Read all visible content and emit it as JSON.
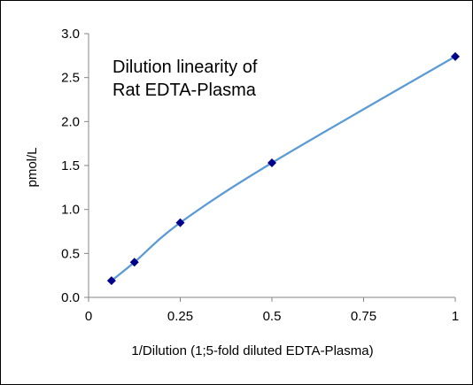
{
  "chart_data": {
    "type": "scatter",
    "title_lines": [
      "Dilution linearity of",
      "Rat  EDTA-Plasma"
    ],
    "xlabel": "1/Dilution (1;5-fold diluted EDTA-Plasma)",
    "ylabel": "pmol/L",
    "xlim": [
      0,
      1
    ],
    "ylim": [
      0,
      3.0
    ],
    "x_ticks": [
      {
        "value": 0,
        "label": "0"
      },
      {
        "value": 0.25,
        "label": "0.25"
      },
      {
        "value": 0.5,
        "label": "0.5"
      },
      {
        "value": 0.75,
        "label": "0.75"
      },
      {
        "value": 1,
        "label": "1"
      }
    ],
    "y_ticks": [
      {
        "value": 0,
        "label": "0.0"
      },
      {
        "value": 0.5,
        "label": "0.5"
      },
      {
        "value": 1.0,
        "label": "1.0"
      },
      {
        "value": 1.5,
        "label": "1.5"
      },
      {
        "value": 2.0,
        "label": "2.0"
      },
      {
        "value": 2.5,
        "label": "2.5"
      },
      {
        "value": 3.0,
        "label": "3.0"
      }
    ],
    "grid": false,
    "series": [
      {
        "line_style": "smooth",
        "line_color": "#5B9BD5",
        "marker": "diamond",
        "marker_color": "#00008B",
        "x": [
          0.0625,
          0.125,
          0.25,
          0.5,
          1.0
        ],
        "y": [
          0.19,
          0.4,
          0.85,
          1.53,
          2.74
        ]
      }
    ]
  }
}
